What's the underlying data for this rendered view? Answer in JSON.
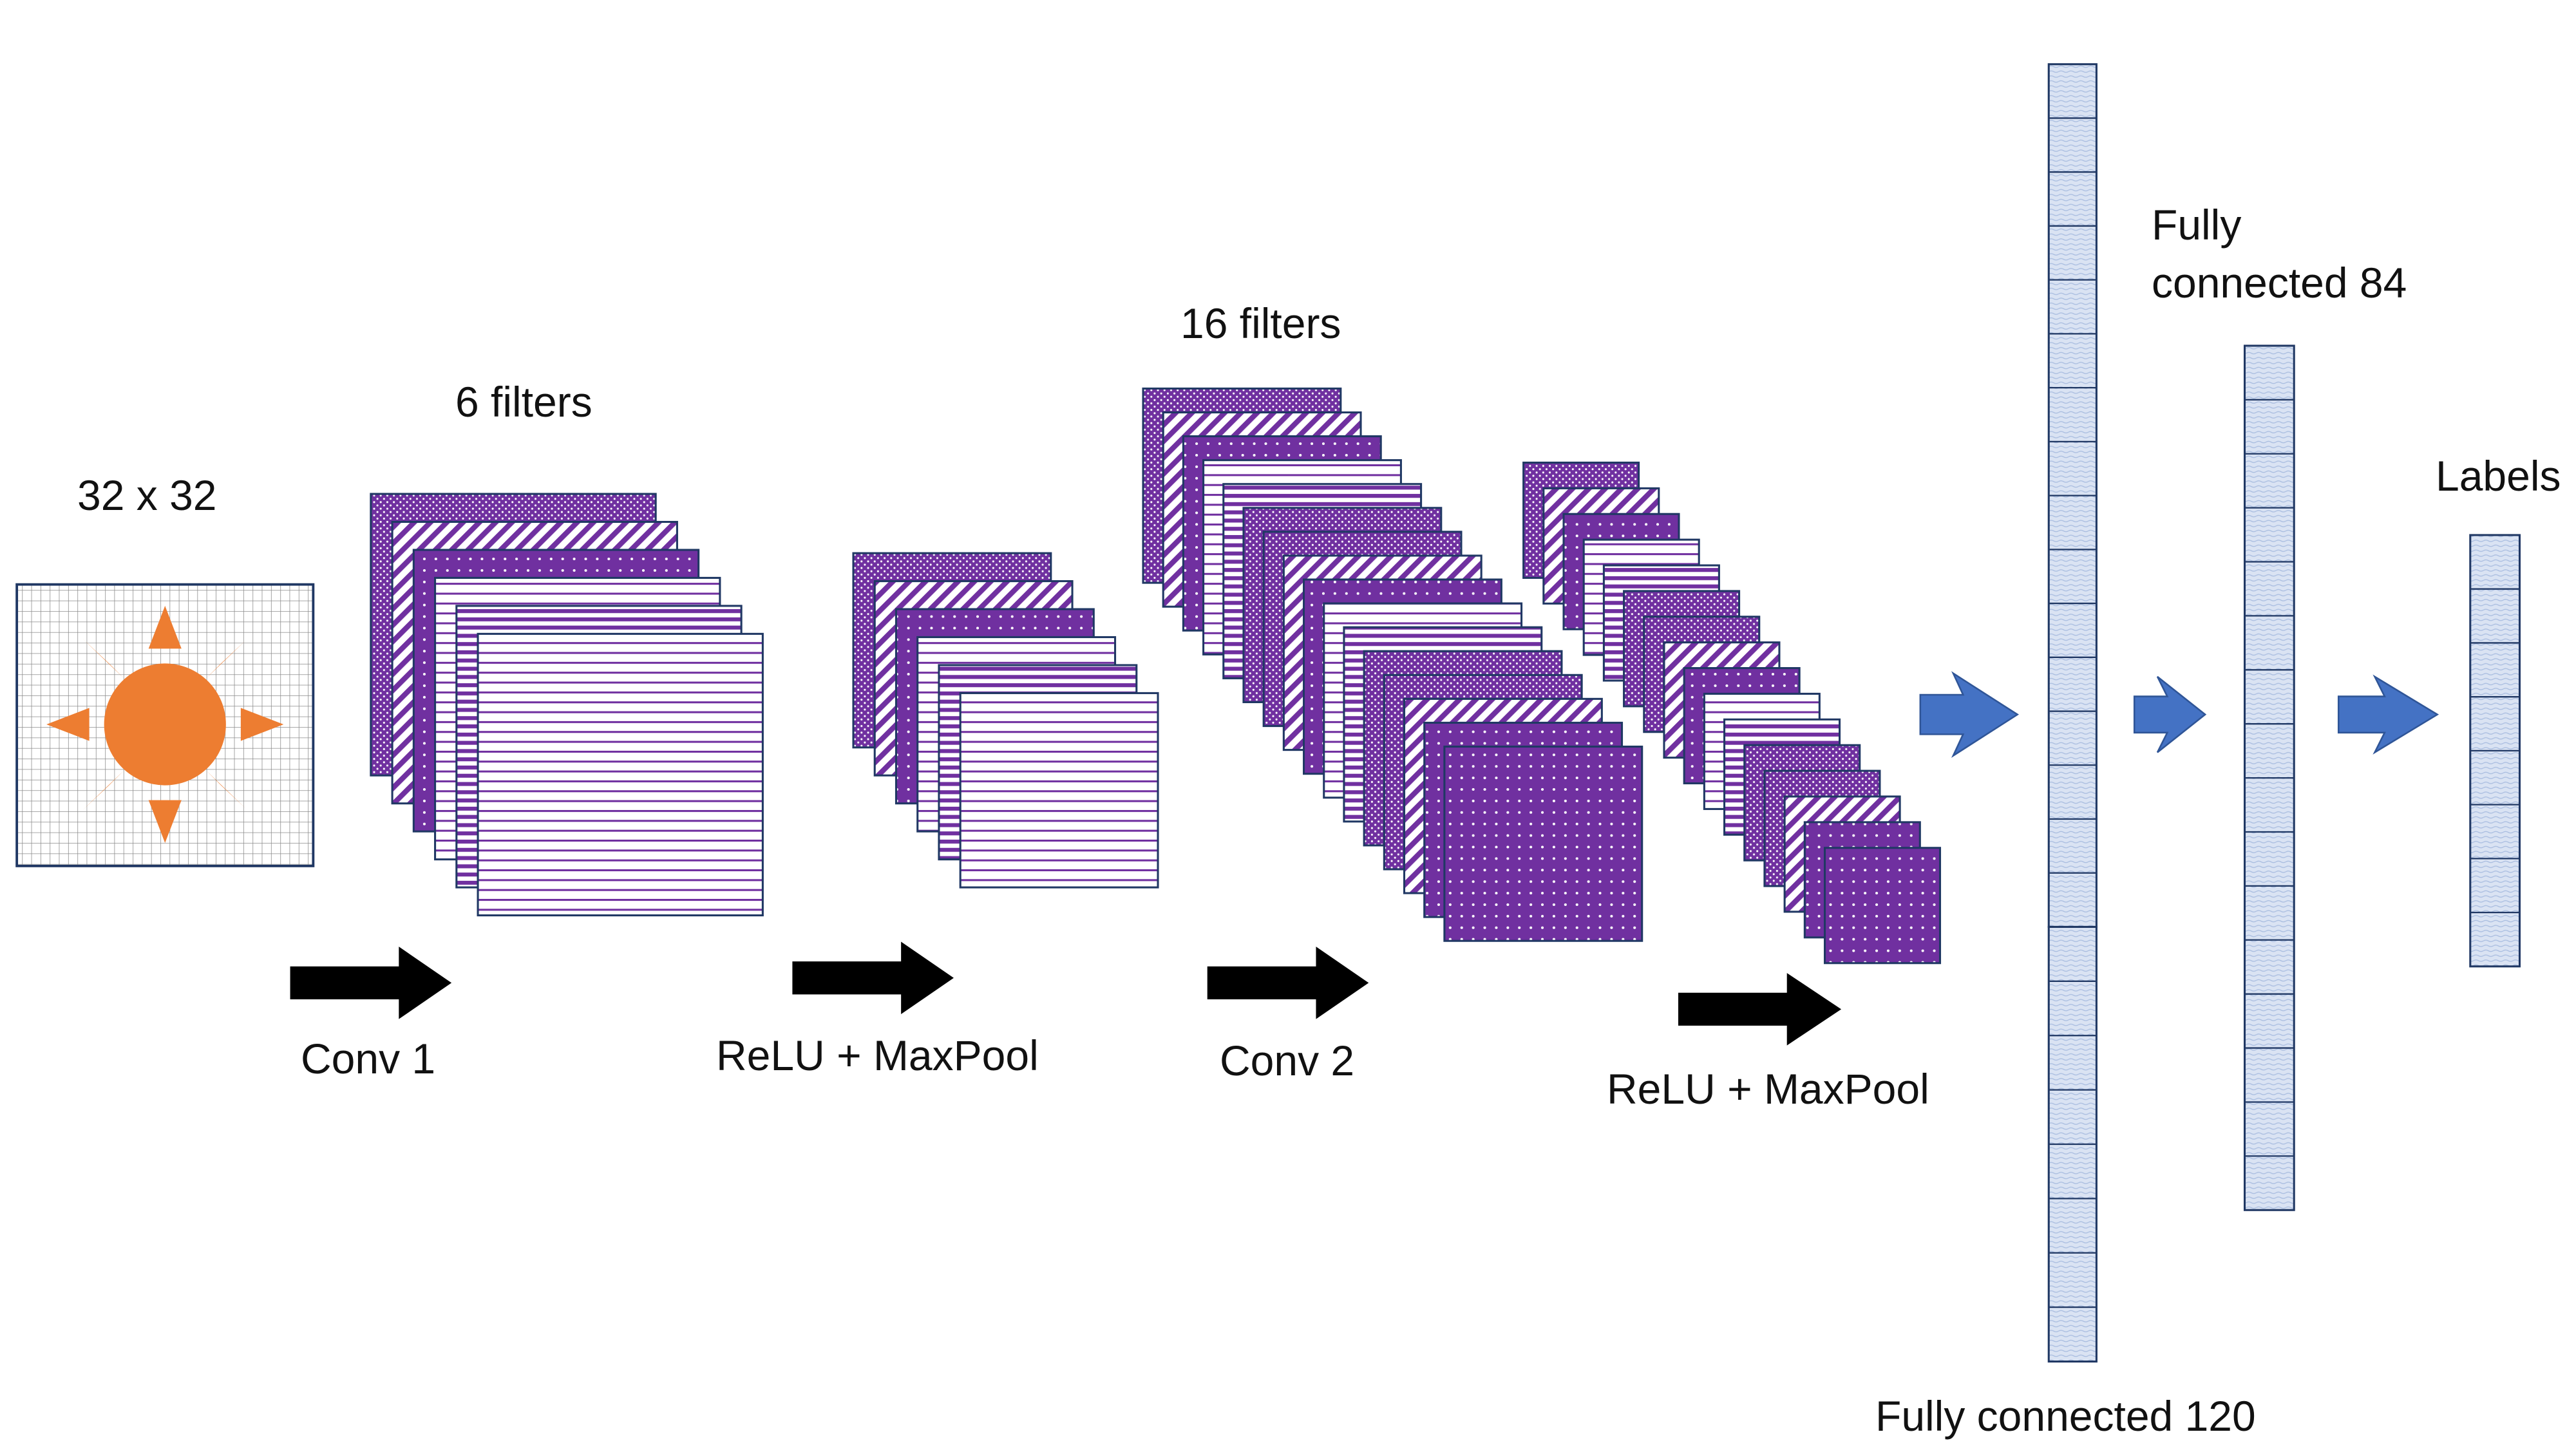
{
  "labels": {
    "input_size": "32 x 32",
    "conv1_filters": "6 filters",
    "conv1": "Conv 1",
    "relu_maxpool_1": "ReLU + MaxPool",
    "conv2_filters": "16 filters",
    "conv2": "Conv 2",
    "relu_maxpool_2": "ReLU + MaxPool",
    "fc84_line1": "Fully",
    "fc84_line2": "connected 84",
    "labels_title": "Labels",
    "fc120": "Fully connected 120"
  },
  "colors": {
    "purple": "#7030a0",
    "sun": "#ed7d31",
    "fc_fill": "#dae3f3",
    "fc_border": "#203864",
    "blue_arrow": "#4472c4",
    "black_arrow": "#000000"
  },
  "icons": {
    "input_image": "sun-icon",
    "flow_arrow": "right-arrow-icon"
  }
}
